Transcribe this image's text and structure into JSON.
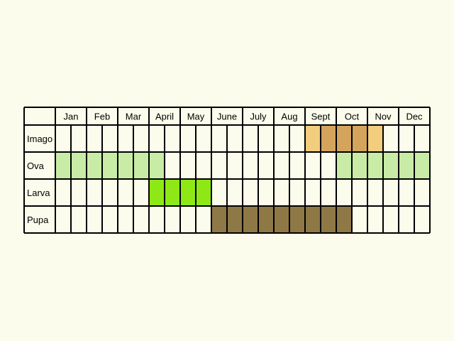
{
  "months": [
    "Jan",
    "Feb",
    "Mar",
    "April",
    "May",
    "June",
    "July",
    "Aug",
    "Sept",
    "Oct",
    "Nov",
    "Dec"
  ],
  "stages": [
    {
      "name": "Imago",
      "color": "#f2cd7e",
      "spans": [
        {
          "start_month": 9,
          "start_half": 1,
          "end_month": 11,
          "end_half": 1
        }
      ],
      "accent_spans": [
        {
          "start_month": 9,
          "start_half": 2,
          "end_month": 10,
          "end_half": 2,
          "color": "#d4a45c"
        }
      ]
    },
    {
      "name": "Ova",
      "color": "#c8eca6",
      "spans": [
        {
          "start_month": 1,
          "start_half": 1,
          "end_month": 4,
          "end_half": 1
        },
        {
          "start_month": 10,
          "start_half": 1,
          "end_month": 12,
          "end_half": 2
        }
      ]
    },
    {
      "name": "Larva",
      "color": "#8ee816",
      "spans": [
        {
          "start_month": 4,
          "start_half": 1,
          "end_month": 5,
          "end_half": 2
        }
      ]
    },
    {
      "name": "Pupa",
      "color": "#8e7946",
      "spans": [
        {
          "start_month": 6,
          "start_half": 1,
          "end_month": 10,
          "end_half": 1
        }
      ]
    }
  ],
  "colors": {
    "background": "#fcfcec",
    "grid": "#000000",
    "cell": "#fcfcec"
  }
}
